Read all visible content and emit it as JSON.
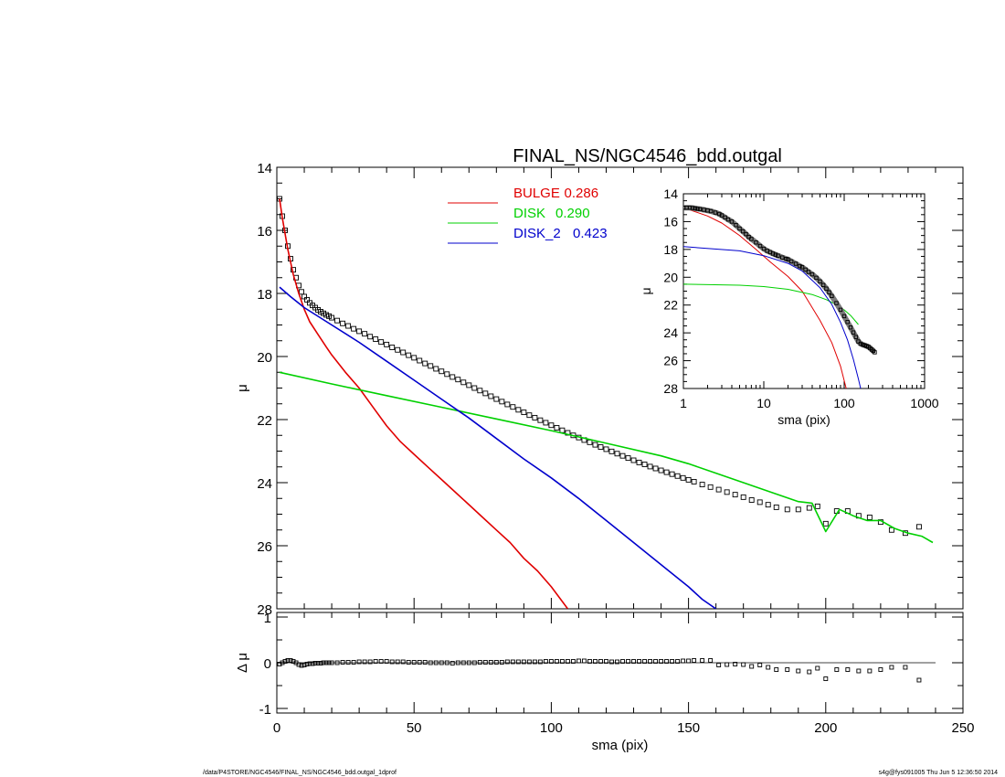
{
  "footer": {
    "left": "/data/P4STORE/NGC4546/FINAL_NS/NGC4546_bdd.outgal_1dprof",
    "right": "s4g@fys091005  Thu Jun  5 12:36:50 2014"
  },
  "colors": {
    "bulge": "#e00000",
    "disk": "#00d000",
    "disk2": "#0000cc",
    "data": "#000000"
  },
  "chart_data": [
    {
      "id": "main",
      "type": "line",
      "title": "FINAL_NS/NGC4546_bdd.outgal",
      "xlabel": "",
      "ylabel": "μ",
      "xlim": [
        0,
        250
      ],
      "ylim": [
        28,
        14
      ],
      "y_inverted": true,
      "yticks": [
        "14",
        "16",
        "18",
        "20",
        "22",
        "24",
        "26",
        "28"
      ],
      "legend_position": "top-center",
      "legend": [
        {
          "name": "BULGE",
          "value": "0.286",
          "color": "#e00000"
        },
        {
          "name": "DISK",
          "value": "0.290",
          "color": "#00d000"
        },
        {
          "name": "DISK_2",
          "value": "0.423",
          "color": "#0000cc"
        }
      ],
      "series": [
        {
          "name": "BULGE",
          "color": "#e00000",
          "x": [
            1,
            2,
            3,
            4,
            5,
            6,
            8,
            10,
            12,
            15,
            18,
            20,
            25,
            30,
            35,
            40,
            45,
            50,
            55,
            60,
            65,
            70,
            75,
            80,
            85,
            90,
            95,
            100,
            106
          ],
          "y": [
            15.0,
            15.6,
            16.1,
            16.6,
            17.0,
            17.4,
            18.0,
            18.5,
            18.9,
            19.3,
            19.7,
            19.95,
            20.5,
            21.0,
            21.6,
            22.2,
            22.7,
            23.1,
            23.5,
            23.9,
            24.3,
            24.7,
            25.1,
            25.5,
            25.9,
            26.4,
            26.8,
            27.3,
            28.0
          ]
        },
        {
          "name": "DISK",
          "color": "#00d000",
          "x": [
            1,
            20,
            40,
            60,
            80,
            100,
            120,
            140,
            150,
            160,
            170,
            180,
            190,
            195,
            200,
            205,
            210,
            215,
            220,
            225,
            230,
            235,
            239
          ],
          "y": [
            20.5,
            20.87,
            21.24,
            21.61,
            21.98,
            22.35,
            22.75,
            23.15,
            23.4,
            23.7,
            24.0,
            24.3,
            24.6,
            24.65,
            25.55,
            24.85,
            25.05,
            25.2,
            25.2,
            25.45,
            25.6,
            25.7,
            25.9
          ]
        },
        {
          "name": "DISK_2",
          "color": "#0000cc",
          "x": [
            1,
            5,
            10,
            20,
            30,
            40,
            50,
            60,
            70,
            80,
            90,
            100,
            110,
            120,
            130,
            140,
            150,
            155,
            160
          ],
          "y": [
            17.8,
            18.1,
            18.45,
            19.0,
            19.55,
            20.15,
            20.75,
            21.35,
            21.95,
            22.6,
            23.25,
            23.85,
            24.5,
            25.2,
            25.9,
            26.6,
            27.3,
            27.7,
            28.0
          ]
        }
      ],
      "observed": {
        "name": "data",
        "x": [
          1,
          2,
          3,
          4,
          5,
          6,
          7,
          8,
          9,
          10,
          11,
          12,
          13,
          14,
          15,
          16,
          17,
          18,
          19,
          20,
          22,
          24,
          26,
          28,
          30,
          32,
          34,
          36,
          38,
          40,
          42,
          44,
          46,
          48,
          50,
          52,
          54,
          56,
          58,
          60,
          62,
          64,
          66,
          68,
          70,
          72,
          74,
          76,
          78,
          80,
          82,
          84,
          86,
          88,
          90,
          92,
          94,
          96,
          98,
          100,
          102,
          104,
          106,
          108,
          110,
          112,
          114,
          116,
          118,
          120,
          122,
          124,
          126,
          128,
          130,
          132,
          134,
          136,
          138,
          140,
          142,
          144,
          146,
          148,
          150,
          152,
          155,
          158,
          161,
          164,
          167,
          170,
          173,
          176,
          179,
          182,
          186,
          190,
          194,
          197,
          200,
          204,
          208,
          212,
          216,
          220,
          224,
          229,
          234
        ],
        "y": [
          15.0,
          15.55,
          16.0,
          16.5,
          16.9,
          17.25,
          17.5,
          17.75,
          17.95,
          18.1,
          18.2,
          18.3,
          18.38,
          18.45,
          18.52,
          18.58,
          18.63,
          18.68,
          18.72,
          18.77,
          18.86,
          18.95,
          19.03,
          19.12,
          19.2,
          19.28,
          19.37,
          19.45,
          19.54,
          19.62,
          19.71,
          19.79,
          19.87,
          19.96,
          20.04,
          20.13,
          20.22,
          20.3,
          20.39,
          20.47,
          20.56,
          20.65,
          20.73,
          20.82,
          20.91,
          21.0,
          21.08,
          21.17,
          21.26,
          21.35,
          21.43,
          21.52,
          21.6,
          21.69,
          21.77,
          21.86,
          21.94,
          22.02,
          22.1,
          22.18,
          22.26,
          22.34,
          22.42,
          22.5,
          22.57,
          22.65,
          22.72,
          22.8,
          22.87,
          22.94,
          23.01,
          23.08,
          23.15,
          23.22,
          23.29,
          23.36,
          23.42,
          23.49,
          23.55,
          23.61,
          23.67,
          23.73,
          23.79,
          23.85,
          23.91,
          23.97,
          24.06,
          24.14,
          24.22,
          24.3,
          24.38,
          24.46,
          24.55,
          24.62,
          24.7,
          24.78,
          24.85,
          24.85,
          24.8,
          24.75,
          25.3,
          24.9,
          24.9,
          25.05,
          25.1,
          25.25,
          25.5,
          25.6,
          25.4
        ]
      }
    },
    {
      "id": "residual",
      "type": "scatter",
      "xlabel": "sma (pix)",
      "ylabel": "Δ μ",
      "xlim": [
        0,
        250
      ],
      "ylim": [
        -1.1,
        1.1
      ],
      "xticks": [
        "0",
        "50",
        "100",
        "150",
        "200",
        "250"
      ],
      "yticks": [
        "1",
        "0",
        "-1"
      ],
      "zero_line": true,
      "x": [
        1,
        2,
        3,
        4,
        5,
        6,
        7,
        8,
        9,
        10,
        11,
        12,
        13,
        14,
        15,
        16,
        17,
        18,
        19,
        20,
        22,
        24,
        26,
        28,
        30,
        32,
        34,
        36,
        38,
        40,
        42,
        44,
        46,
        48,
        50,
        52,
        54,
        56,
        58,
        60,
        62,
        64,
        66,
        68,
        70,
        72,
        74,
        76,
        78,
        80,
        82,
        84,
        86,
        88,
        90,
        92,
        94,
        96,
        98,
        100,
        102,
        104,
        106,
        108,
        110,
        112,
        114,
        116,
        118,
        120,
        122,
        124,
        126,
        128,
        130,
        132,
        134,
        136,
        138,
        140,
        142,
        144,
        146,
        148,
        150,
        152,
        155,
        158,
        161,
        164,
        167,
        170,
        173,
        176,
        179,
        182,
        186,
        190,
        194,
        197,
        200,
        204,
        208,
        212,
        216,
        220,
        224,
        229,
        234
      ],
      "y": [
        -0.03,
        0.0,
        0.03,
        0.05,
        0.05,
        0.03,
        0.0,
        -0.04,
        -0.06,
        -0.05,
        -0.03,
        -0.02,
        -0.02,
        -0.01,
        -0.01,
        -0.01,
        0.0,
        0.0,
        0.0,
        0.0,
        0.0,
        0.01,
        0.01,
        0.01,
        0.02,
        0.02,
        0.02,
        0.03,
        0.03,
        0.03,
        0.02,
        0.02,
        0.02,
        0.01,
        0.01,
        0.01,
        0.01,
        0.0,
        0.0,
        0.0,
        0.0,
        -0.01,
        0.0,
        0.0,
        0.0,
        0.0,
        0.01,
        0.01,
        0.01,
        0.01,
        0.01,
        0.02,
        0.02,
        0.02,
        0.02,
        0.02,
        0.02,
        0.02,
        0.03,
        0.03,
        0.03,
        0.03,
        0.03,
        0.03,
        0.04,
        0.04,
        0.03,
        0.03,
        0.03,
        0.03,
        0.02,
        0.02,
        0.03,
        0.03,
        0.03,
        0.03,
        0.03,
        0.03,
        0.03,
        0.03,
        0.03,
        0.03,
        0.03,
        0.04,
        0.04,
        0.05,
        0.05,
        0.05,
        -0.05,
        -0.04,
        -0.03,
        -0.04,
        -0.08,
        -0.05,
        -0.1,
        -0.15,
        -0.15,
        -0.18,
        -0.2,
        -0.12,
        -0.35,
        -0.15,
        -0.15,
        -0.18,
        -0.18,
        -0.15,
        -0.1,
        -0.1,
        -0.38
      ]
    },
    {
      "id": "inset",
      "type": "line",
      "xlabel": "sma (pix)",
      "ylabel": "μ",
      "x_scale": "log",
      "xlim": [
        1,
        1000
      ],
      "ylim": [
        28,
        14
      ],
      "y_inverted": true,
      "xticks": [
        "1",
        "10",
        "100",
        "1000"
      ],
      "yticks": [
        "14",
        "16",
        "18",
        "20",
        "22",
        "24",
        "26",
        "28"
      ],
      "series": [
        {
          "name": "BULGE",
          "color": "#e00000",
          "x": [
            1,
            2,
            3,
            5,
            8,
            12,
            20,
            30,
            50,
            70,
            90,
            106
          ],
          "y": [
            15.0,
            15.6,
            16.1,
            17.0,
            18.0,
            18.9,
            19.95,
            21.0,
            23.1,
            24.7,
            26.4,
            28.0
          ]
        },
        {
          "name": "DISK",
          "color": "#00d000",
          "x": [
            1,
            5,
            10,
            20,
            40,
            60,
            80,
            100,
            120,
            150
          ],
          "y": [
            20.5,
            20.57,
            20.67,
            20.87,
            21.24,
            21.61,
            21.98,
            22.35,
            22.75,
            23.4
          ]
        },
        {
          "name": "DISK_2",
          "color": "#0000cc",
          "x": [
            1,
            5,
            10,
            20,
            30,
            50,
            70,
            90,
            110,
            130,
            150,
            160
          ],
          "y": [
            17.8,
            18.1,
            18.45,
            19.0,
            19.55,
            20.75,
            21.95,
            23.25,
            24.5,
            25.9,
            27.3,
            28.0
          ]
        }
      ],
      "observed": {
        "x": [
          1.0,
          1.1,
          1.2,
          1.3,
          1.4,
          1.5,
          1.6,
          1.8,
          2.0,
          2.2,
          2.5,
          2.8,
          3.0,
          3.3,
          3.6,
          4.0,
          4.5,
          5.0,
          5.5,
          6.0,
          6.5,
          7.0,
          8.0,
          9.0,
          10,
          11,
          12,
          13,
          14,
          15,
          17,
          19,
          20,
          22,
          25,
          28,
          30,
          33,
          36,
          40,
          45,
          50,
          55,
          60,
          65,
          70,
          80,
          90,
          100,
          110,
          120,
          130,
          140,
          150,
          160,
          170,
          180,
          190,
          200,
          210,
          220,
          230,
          240
        ],
        "y": [
          15.0,
          15.0,
          15.0,
          15.02,
          15.05,
          15.08,
          15.1,
          15.15,
          15.2,
          15.25,
          15.35,
          15.45,
          15.55,
          15.7,
          15.85,
          16.0,
          16.25,
          16.5,
          16.7,
          16.9,
          17.1,
          17.25,
          17.5,
          17.75,
          17.95,
          18.1,
          18.2,
          18.3,
          18.38,
          18.45,
          18.58,
          18.68,
          18.72,
          18.86,
          19.03,
          19.2,
          19.28,
          19.45,
          19.62,
          19.79,
          20.04,
          20.3,
          20.56,
          20.82,
          21.08,
          21.35,
          21.86,
          22.34,
          22.8,
          23.22,
          23.61,
          23.97,
          24.3,
          24.62,
          24.78,
          24.85,
          24.9,
          24.95,
          25.0,
          25.1,
          25.2,
          25.3,
          25.4
        ]
      }
    }
  ]
}
